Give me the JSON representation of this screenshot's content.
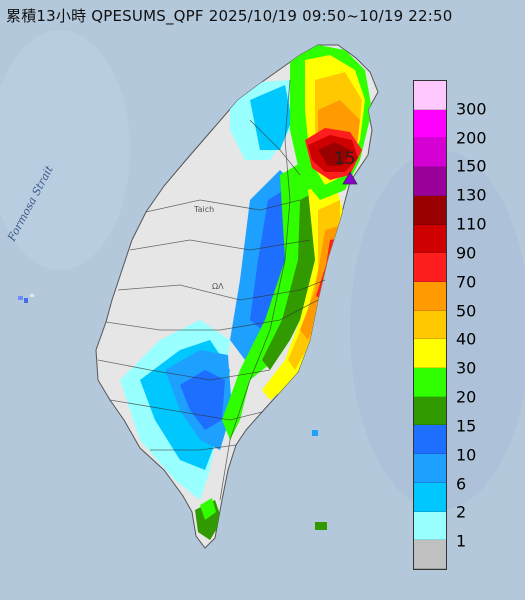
{
  "title": "累積13小時 QPESUMS_QPF 2025/10/19 09:50~10/19 22:50",
  "strait_label": "Formosa Strait",
  "place_labels": {
    "taichung": "Taich",
    "mid": "ΩΛ"
  },
  "max_marker_value": "15",
  "legend": {
    "labels": [
      "300",
      "200",
      "150",
      "130",
      "110",
      "90",
      "70",
      "50",
      "40",
      "30",
      "20",
      "15",
      "10",
      "6",
      "2",
      "1"
    ],
    "colors": [
      "#ffc8ff",
      "#ff00ff",
      "#d400d4",
      "#9a009a",
      "#9a0000",
      "#ce0000",
      "#ff1e1e",
      "#ff9a00",
      "#ffc800",
      "#ffff00",
      "#30ff00",
      "#309a00",
      "#1e6eff",
      "#1ea0ff",
      "#00c8ff",
      "#9affff",
      "#c0c0c0"
    ]
  },
  "colors": {
    "sea": "#b4c8dc",
    "land_dry": "#e6e6e6",
    "marker": "#8a00d4"
  }
}
